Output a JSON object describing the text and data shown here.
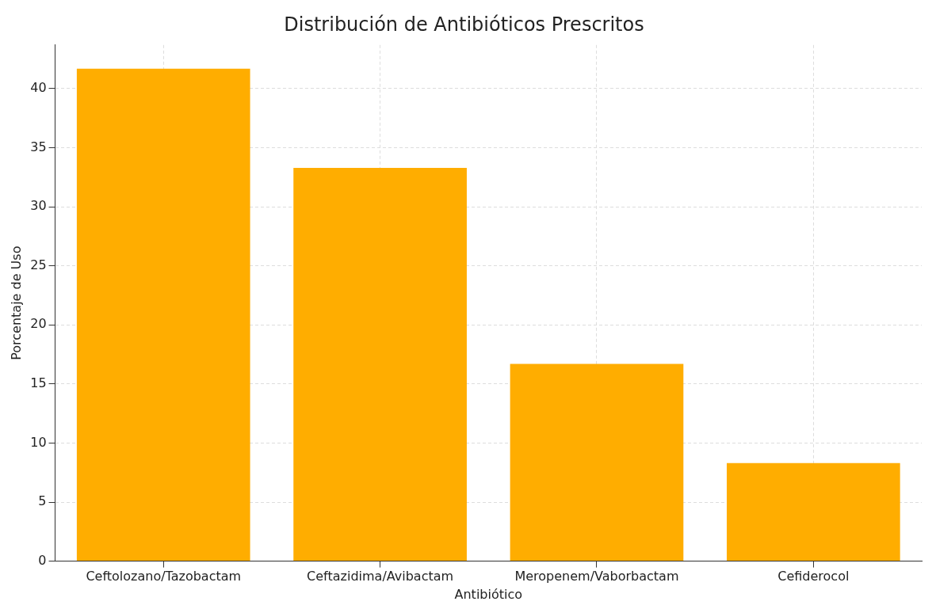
{
  "chart_data": {
    "type": "bar",
    "title": "Distribución de Antibióticos Prescritos",
    "xlabel": "Antibiótico",
    "ylabel": "Porcentaje de Uso",
    "categories": [
      "Ceftolozano/Tazobactam",
      "Ceftazidima/Avibactam",
      "Meropenem/Vaborbactam",
      "Cefiderocol"
    ],
    "values": [
      41.7,
      33.3,
      16.7,
      8.3
    ],
    "color": "#ffad00",
    "ylim": [
      0,
      43.7
    ],
    "yticks": [
      0,
      5,
      10,
      15,
      20,
      25,
      30,
      35,
      40
    ],
    "grid": true,
    "legend": false
  }
}
